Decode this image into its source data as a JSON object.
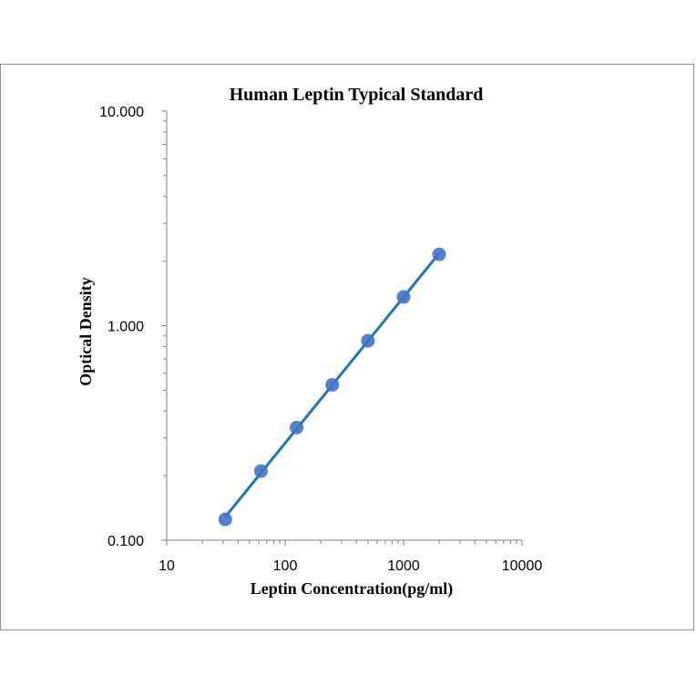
{
  "chart_data": {
    "type": "scatter",
    "title": "Human Leptin Typical Standard",
    "xlabel": "Leptin Concentration(pg/ml)",
    "ylabel": "Optical Density",
    "xscale": "log",
    "yscale": "log",
    "xlim": [
      10,
      10000
    ],
    "ylim": [
      0.1,
      10
    ],
    "x_tick_labels": [
      "10",
      "100",
      "1000",
      "10000"
    ],
    "y_tick_labels": [
      "0.100",
      "1.000",
      "10.000"
    ],
    "grid": false,
    "legend": "none",
    "trendline": true,
    "series": [
      {
        "x": [
          31.25,
          62.5,
          125,
          250,
          500,
          1000,
          2000
        ],
        "y": [
          0.125,
          0.21,
          0.335,
          0.53,
          0.85,
          1.36,
          2.15
        ]
      }
    ],
    "colors": {
      "marker": "#4472c4",
      "line": "#1f77b4"
    }
  }
}
